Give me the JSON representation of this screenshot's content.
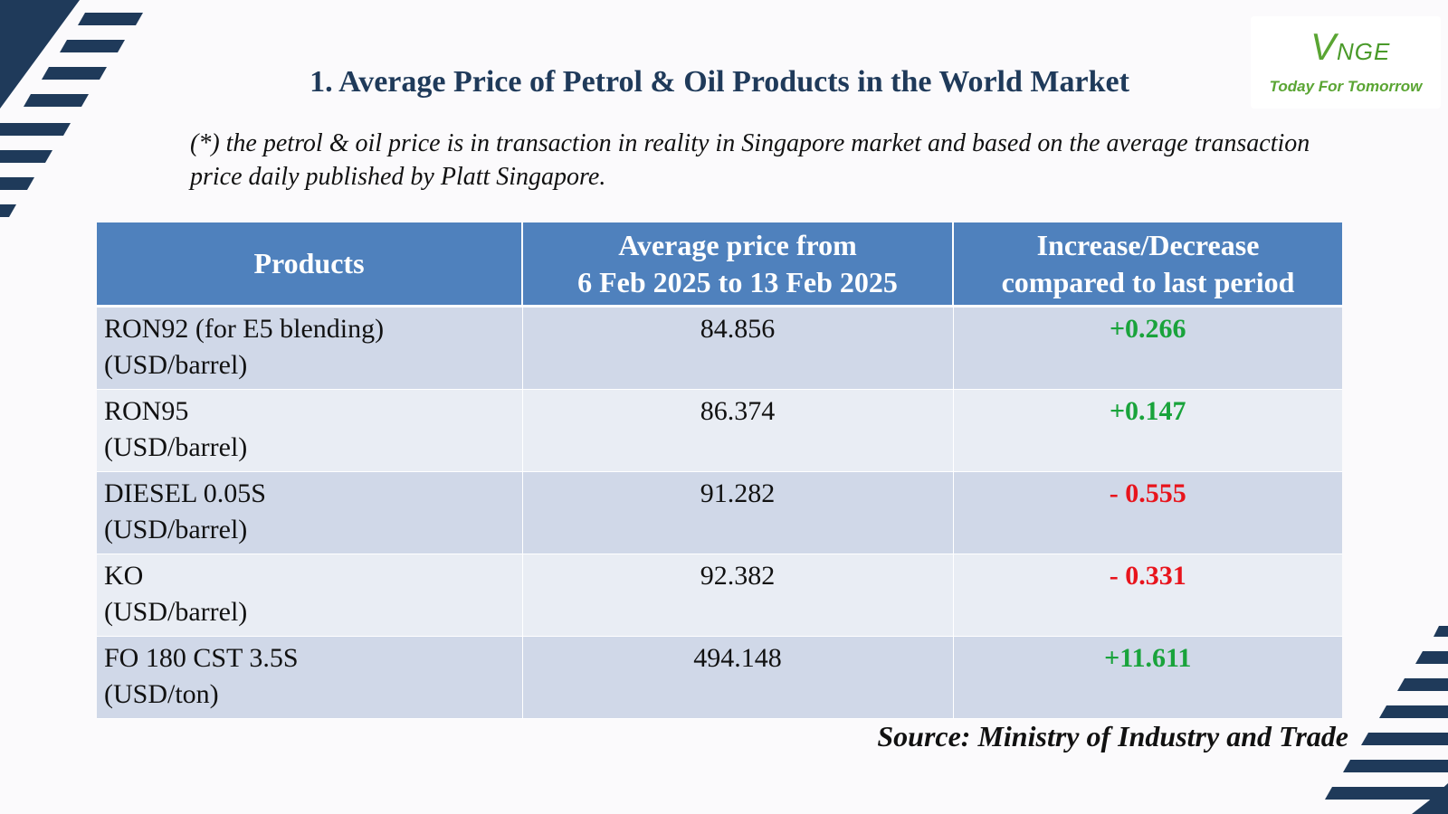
{
  "logo": {
    "brand_text": "VNGE",
    "tagline": "Today For Tomorrow"
  },
  "title": "1. Average Price of Petrol & Oil Products in the World Market",
  "note": "(*) the petrol & oil price is in transaction in reality in Singapore market and based on the average transaction price daily published by Platt Singapore.",
  "table": {
    "headers": {
      "products": "Products",
      "avg_price_line1": "Average price from",
      "avg_price_line2": "6 Feb 2025 to 13 Feb 2025",
      "change_line1": "Increase/Decrease",
      "change_line2": "compared to last period"
    },
    "rows": [
      {
        "product": "RON92 (for E5 blending)",
        "unit": "(USD/barrel)",
        "price": "84.856",
        "change": "+0.266",
        "direction": "up"
      },
      {
        "product": "RON95",
        "unit": "(USD/barrel)",
        "price": "86.374",
        "change": "+0.147",
        "direction": "up"
      },
      {
        "product": "DIESEL 0.05S",
        "unit": "(USD/barrel)",
        "price": "91.282",
        "change": "- 0.555",
        "direction": "down"
      },
      {
        "product": "KO",
        "unit": "(USD/barrel)",
        "price": "92.382",
        "change": "- 0.331",
        "direction": "down"
      },
      {
        "product": "FO 180 CST 3.5S",
        "unit": "(USD/ton)",
        "price": "494.148",
        "change": "+11.611",
        "direction": "up"
      }
    ]
  },
  "source": "Source: Ministry of Industry and Trade",
  "colors": {
    "header_bg": "#4f81bd",
    "row_dark": "#d0d8e8",
    "row_light": "#e9edf4",
    "increase": "#19a33b",
    "decrease": "#e8141c",
    "title": "#1f3a5a",
    "decoration": "#1f3a5a"
  }
}
